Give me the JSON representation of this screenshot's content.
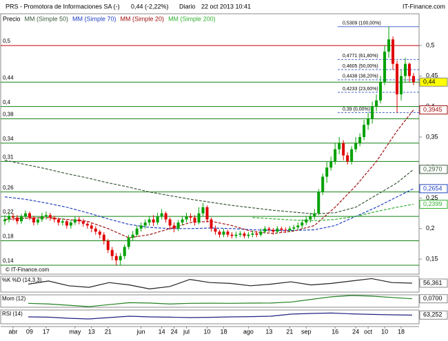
{
  "header": {
    "symbol": "PRS - Promotora de Informaciones SA (-)",
    "quote": "0,44 (-2,22%)",
    "period": "Diario",
    "datetime": "22 oct 2013 10:41",
    "brand": "IT-Finance.com"
  },
  "footer": "© IT-Finance.com",
  "chart_data": {
    "type": "candlestick",
    "price_label": "Precio",
    "up_color": "#00a000",
    "down_color": "#e00000",
    "ylim": [
      0.1253,
      0.552
    ],
    "yticks": [
      {
        "value": 0.15,
        "label": "0,15"
      },
      {
        "value": 0.2,
        "label": "0,2"
      },
      {
        "value": 0.25,
        "label": "0,25"
      },
      {
        "value": 0.3,
        "label": "0,3"
      },
      {
        "value": 0.35,
        "label": "0,35"
      },
      {
        "value": 0.4,
        "label": "0,4"
      },
      {
        "value": 0.45,
        "label": "0,45"
      },
      {
        "value": 0.5,
        "label": "0,5"
      }
    ],
    "categories": [
      null,
      null,
      "abr",
      null,
      null,
      null,
      "09",
      null,
      null,
      null,
      "17",
      null,
      null,
      null,
      null,
      null,
      null,
      "may",
      null,
      null,
      null,
      "13",
      null,
      null,
      null,
      "21",
      null,
      null,
      null,
      null,
      null,
      null,
      null,
      "jun",
      null,
      null,
      null,
      null,
      "14",
      null,
      null,
      "24",
      null,
      null,
      "jul",
      null,
      null,
      null,
      null,
      "10",
      null,
      null,
      null,
      "18",
      null,
      null,
      null,
      null,
      null,
      "ago",
      null,
      null,
      null,
      null,
      "13",
      null,
      null,
      null,
      null,
      "21",
      null,
      null,
      null,
      "sep",
      null,
      null,
      null,
      null,
      null,
      null,
      "16",
      null,
      null,
      null,
      null,
      "24",
      null,
      null,
      "oct",
      null,
      null,
      null,
      "10",
      null,
      null,
      null,
      "18",
      null,
      null,
      null
    ],
    "candles": [
      [
        0.212,
        0.222,
        0.206,
        0.215
      ],
      [
        0.215,
        0.226,
        0.21,
        0.22
      ],
      [
        0.22,
        0.225,
        0.213,
        0.218
      ],
      [
        0.218,
        0.222,
        0.207,
        0.212
      ],
      [
        0.212,
        0.224,
        0.208,
        0.22
      ],
      [
        0.22,
        0.23,
        0.216,
        0.225
      ],
      [
        0.225,
        0.228,
        0.214,
        0.218
      ],
      [
        0.218,
        0.221,
        0.205,
        0.21
      ],
      [
        0.21,
        0.219,
        0.206,
        0.215
      ],
      [
        0.215,
        0.226,
        0.211,
        0.22
      ],
      [
        0.22,
        0.228,
        0.215,
        0.222
      ],
      [
        0.222,
        0.226,
        0.213,
        0.218
      ],
      [
        0.218,
        0.221,
        0.21,
        0.215
      ],
      [
        0.215,
        0.218,
        0.205,
        0.21
      ],
      [
        0.21,
        0.217,
        0.205,
        0.212
      ],
      [
        0.212,
        0.215,
        0.2,
        0.205
      ],
      [
        0.205,
        0.214,
        0.2,
        0.21
      ],
      [
        0.21,
        0.22,
        0.206,
        0.215
      ],
      [
        0.215,
        0.219,
        0.207,
        0.212
      ],
      [
        0.212,
        0.216,
        0.203,
        0.208
      ],
      [
        0.208,
        0.212,
        0.2,
        0.205
      ],
      [
        0.205,
        0.209,
        0.194,
        0.2
      ],
      [
        0.2,
        0.204,
        0.19,
        0.195
      ],
      [
        0.195,
        0.198,
        0.184,
        0.19
      ],
      [
        0.19,
        0.194,
        0.174,
        0.18
      ],
      [
        0.18,
        0.183,
        0.16,
        0.165
      ],
      [
        0.165,
        0.17,
        0.148,
        0.155
      ],
      [
        0.155,
        0.16,
        0.14,
        0.148
      ],
      [
        0.148,
        0.16,
        0.14,
        0.155
      ],
      [
        0.155,
        0.174,
        0.15,
        0.17
      ],
      [
        0.17,
        0.19,
        0.166,
        0.185
      ],
      [
        0.185,
        0.196,
        0.18,
        0.19
      ],
      [
        0.19,
        0.205,
        0.186,
        0.2
      ],
      [
        0.2,
        0.21,
        0.195,
        0.205
      ],
      [
        0.205,
        0.215,
        0.2,
        0.21
      ],
      [
        0.21,
        0.22,
        0.205,
        0.215
      ],
      [
        0.215,
        0.222,
        0.204,
        0.21
      ],
      [
        0.21,
        0.226,
        0.206,
        0.22
      ],
      [
        0.22,
        0.232,
        0.215,
        0.225
      ],
      [
        0.225,
        0.228,
        0.21,
        0.215
      ],
      [
        0.215,
        0.218,
        0.198,
        0.205
      ],
      [
        0.205,
        0.21,
        0.194,
        0.2
      ],
      [
        0.2,
        0.214,
        0.196,
        0.21
      ],
      [
        0.21,
        0.22,
        0.206,
        0.215
      ],
      [
        0.215,
        0.226,
        0.21,
        0.22
      ],
      [
        0.22,
        0.225,
        0.212,
        0.218
      ],
      [
        0.218,
        0.222,
        0.205,
        0.21
      ],
      [
        0.21,
        0.235,
        0.207,
        0.225
      ],
      [
        0.225,
        0.242,
        0.22,
        0.235
      ],
      [
        0.235,
        0.238,
        0.21,
        0.215
      ],
      [
        0.215,
        0.218,
        0.195,
        0.2
      ],
      [
        0.2,
        0.205,
        0.19,
        0.195
      ],
      [
        0.195,
        0.198,
        0.185,
        0.19
      ],
      [
        0.19,
        0.2,
        0.186,
        0.195
      ],
      [
        0.195,
        0.198,
        0.186,
        0.19
      ],
      [
        0.19,
        0.194,
        0.184,
        0.188
      ],
      [
        0.188,
        0.195,
        0.184,
        0.19
      ],
      [
        0.19,
        0.196,
        0.186,
        0.192
      ],
      [
        0.192,
        0.195,
        0.184,
        0.188
      ],
      [
        0.188,
        0.194,
        0.184,
        0.19
      ],
      [
        0.19,
        0.197,
        0.186,
        0.192
      ],
      [
        0.192,
        0.196,
        0.186,
        0.19
      ],
      [
        0.19,
        0.2,
        0.187,
        0.195
      ],
      [
        0.195,
        0.204,
        0.192,
        0.2
      ],
      [
        0.2,
        0.203,
        0.194,
        0.198
      ],
      [
        0.198,
        0.201,
        0.19,
        0.195
      ],
      [
        0.195,
        0.204,
        0.192,
        0.2
      ],
      [
        0.2,
        0.203,
        0.194,
        0.198
      ],
      [
        0.198,
        0.202,
        0.193,
        0.197
      ],
      [
        0.197,
        0.204,
        0.194,
        0.2
      ],
      [
        0.2,
        0.206,
        0.196,
        0.202
      ],
      [
        0.202,
        0.21,
        0.198,
        0.205
      ],
      [
        0.205,
        0.215,
        0.2,
        0.21
      ],
      [
        0.21,
        0.22,
        0.206,
        0.215
      ],
      [
        0.215,
        0.226,
        0.21,
        0.22
      ],
      [
        0.22,
        0.232,
        0.215,
        0.225
      ],
      [
        0.225,
        0.265,
        0.222,
        0.26
      ],
      [
        0.26,
        0.29,
        0.255,
        0.285
      ],
      [
        0.285,
        0.31,
        0.275,
        0.3
      ],
      [
        0.3,
        0.318,
        0.295,
        0.31
      ],
      [
        0.31,
        0.34,
        0.305,
        0.33
      ],
      [
        0.33,
        0.35,
        0.322,
        0.34
      ],
      [
        0.34,
        0.345,
        0.312,
        0.32
      ],
      [
        0.32,
        0.325,
        0.305,
        0.31
      ],
      [
        0.31,
        0.335,
        0.305,
        0.33
      ],
      [
        0.33,
        0.35,
        0.325,
        0.34
      ],
      [
        0.34,
        0.356,
        0.335,
        0.35
      ],
      [
        0.35,
        0.378,
        0.345,
        0.37
      ],
      [
        0.37,
        0.39,
        0.362,
        0.38
      ],
      [
        0.38,
        0.408,
        0.372,
        0.4
      ],
      [
        0.4,
        0.42,
        0.392,
        0.41
      ],
      [
        0.41,
        0.45,
        0.405,
        0.44
      ],
      [
        0.44,
        0.5,
        0.435,
        0.49
      ],
      [
        0.49,
        0.5309,
        0.48,
        0.51
      ],
      [
        0.51,
        0.515,
        0.46,
        0.47
      ],
      [
        0.47,
        0.475,
        0.39,
        0.42
      ],
      [
        0.42,
        0.46,
        0.41,
        0.45
      ],
      [
        0.45,
        0.48,
        0.44,
        0.47
      ],
      [
        0.47,
        0.472,
        0.44,
        0.45
      ],
      [
        0.45,
        0.455,
        0.435,
        0.44
      ]
    ],
    "series": [
      {
        "name": "MM (Simple 50)",
        "color": "#3a5a3a",
        "x": [
          0,
          5,
          10,
          15,
          20,
          25,
          30,
          35,
          40,
          45,
          50,
          55,
          60,
          65,
          70,
          75,
          80,
          85,
          90,
          95,
          99
        ],
        "values": [
          0.312,
          0.305,
          0.298,
          0.29,
          0.283,
          0.275,
          0.268,
          0.26,
          0.254,
          0.248,
          0.243,
          0.238,
          0.234,
          0.23,
          0.227,
          0.224,
          0.226,
          0.235,
          0.255,
          0.275,
          0.297
        ]
      },
      {
        "name": "MM (Simple 70)",
        "color": "#2040c0",
        "x": [
          0,
          5,
          10,
          15,
          20,
          25,
          30,
          35,
          40,
          45,
          50,
          55,
          60,
          65,
          70,
          75,
          80,
          85,
          90,
          95,
          99
        ],
        "values": [
          0.252,
          0.248,
          0.242,
          0.235,
          0.226,
          0.216,
          0.207,
          0.202,
          0.2,
          0.2,
          0.201,
          0.2,
          0.198,
          0.197,
          0.197,
          0.198,
          0.205,
          0.22,
          0.235,
          0.252,
          0.2654
        ]
      },
      {
        "name": "MM (Simple 20)",
        "color": "#a01010",
        "x": [
          0,
          5,
          10,
          15,
          20,
          25,
          30,
          35,
          40,
          45,
          50,
          55,
          60,
          65,
          70,
          75,
          80,
          85,
          90,
          95,
          99
        ],
        "values": [
          0.215,
          0.217,
          0.218,
          0.215,
          0.212,
          0.2,
          0.185,
          0.19,
          0.2,
          0.21,
          0.212,
          0.205,
          0.195,
          0.192,
          0.196,
          0.205,
          0.235,
          0.27,
          0.31,
          0.36,
          0.3945
        ]
      },
      {
        "name": "MM (Simple 200)",
        "color": "#30b030",
        "x": [
          60,
          65,
          70,
          75,
          80,
          85,
          90,
          95,
          99
        ],
        "values": [
          0.218,
          0.216,
          0.214,
          0.213,
          0.215,
          0.22,
          0.228,
          0.235,
          0.2399
        ]
      }
    ],
    "last_values": [
      {
        "value": 0.44,
        "label": "0,44",
        "color": "#ffff00"
      },
      {
        "value": 0.3945,
        "label": "0,3945",
        "color": "#a01010"
      },
      {
        "value": 0.297,
        "label": "0,2970",
        "color": "#3a5a3a"
      },
      {
        "value": 0.2654,
        "label": "0,2654",
        "color": "#2040c0"
      },
      {
        "value": 0.2399,
        "label": "0,2399",
        "color": "#30b030"
      }
    ],
    "levels": [
      {
        "value": 0.5,
        "label": "0,5",
        "color": "#c00000"
      },
      {
        "value": 0.44,
        "label": "0,44",
        "color": "#108010"
      },
      {
        "value": 0.4,
        "label": "0,4",
        "color": "#108010"
      },
      {
        "value": 0.38,
        "label": "0,38",
        "color": "#108010"
      },
      {
        "value": 0.34,
        "label": "0,34",
        "color": "#108010"
      },
      {
        "value": 0.31,
        "label": "0,31",
        "color": "#108010"
      },
      {
        "value": 0.26,
        "label": "0,26",
        "color": "#108010"
      },
      {
        "value": 0.22,
        "label": "0,22",
        "color": "#108010"
      },
      {
        "value": 0.18,
        "label": "0,18",
        "color": "#108010"
      },
      {
        "value": 0.14,
        "label": "0,14",
        "color": "#108010"
      }
    ],
    "fibonacci": [
      {
        "value": 0.5309,
        "label": "0,5309 (100,00%)"
      },
      {
        "value": 0.4771,
        "label": "0,4771 (61,80%)"
      },
      {
        "value": 0.4605,
        "label": "0,4605 (50,00%)"
      },
      {
        "value": 0.4438,
        "label": "0,4438 (38,20%)"
      },
      {
        "value": 0.4233,
        "label": "0,4233 (23,60%)"
      },
      {
        "value": 0.39,
        "label": "0,39 (0,00%)"
      }
    ],
    "fib_color": "#4a6ad0",
    "indicators": [
      {
        "name": "%K %D (14,3,3)",
        "color": "#202020",
        "ylim": [
          0,
          100
        ],
        "values": [
          50,
          70,
          40,
          30,
          60,
          45,
          20,
          35,
          80,
          60,
          55,
          40,
          50,
          65,
          45,
          55,
          70,
          85,
          60,
          56.361
        ],
        "value_label": "56,361"
      },
      {
        "name": "Mom (12)",
        "color": "#208020",
        "ylim": [
          -0.06,
          0.13
        ],
        "values": [
          0,
          -0.01,
          -0.03,
          -0.05,
          -0.02,
          0.01,
          0.005,
          -0.01,
          0,
          0.002,
          0,
          0.003,
          0.005,
          0.02,
          0.06,
          0.1,
          0.12,
          0.11,
          0.09,
          0.07
        ],
        "value_label": "0,0700"
      },
      {
        "name": "RSI (14)",
        "color": "#202080",
        "ylim": [
          0,
          100
        ],
        "values": [
          50,
          48,
          40,
          35,
          45,
          55,
          50,
          48,
          45,
          47,
          50,
          52,
          55,
          70,
          75,
          78,
          72,
          68,
          65,
          63.252
        ],
        "value_label": "63,252"
      }
    ]
  }
}
